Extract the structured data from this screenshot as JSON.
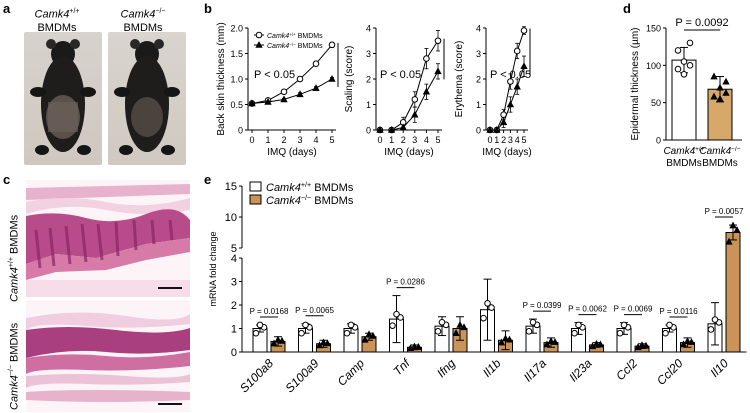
{
  "panels": {
    "a": {
      "label": "a",
      "mice": [
        {
          "genotype": "Camk4",
          "sup": "+/+",
          "suffix": "BMDMs"
        },
        {
          "genotype": "Camk4",
          "sup": "−/−",
          "suffix": "BMDMs"
        }
      ]
    },
    "c": {
      "label": "c",
      "rows": [
        {
          "genotype": "Camk4",
          "sup": "+/+",
          "suffix": " BMDMs"
        },
        {
          "genotype": "Camk4",
          "sup": "−/−",
          "suffix": " BMDMs"
        }
      ]
    }
  },
  "chart_data": [
    {
      "id": "b1",
      "panel_label": "b",
      "type": "line",
      "xlabel": "IMQ (days)",
      "ylabel": "Back skin thickness (mm)",
      "x": [
        0,
        1,
        2,
        3,
        4,
        5
      ],
      "ylim": [
        0,
        2.0
      ],
      "yticks": [
        "0",
        "0.5",
        "1.0",
        "1.5",
        "2.0"
      ],
      "annotation": "P < 0.05",
      "legend": [
        {
          "genotype": "Camk4",
          "sup": "+/+",
          "suffix": " BMDMs"
        },
        {
          "genotype": "Camk4",
          "sup": "−/−",
          "suffix": " BMDMs"
        }
      ],
      "series": [
        {
          "name": "Camk4+/+ BMDMs",
          "values": [
            0.52,
            0.58,
            0.75,
            1.0,
            1.3,
            1.67
          ],
          "err": [
            0.02,
            0.02,
            0.03,
            0.03,
            0.04,
            0.05
          ]
        },
        {
          "name": "Camk4−/− BMDMs",
          "values": [
            0.52,
            0.55,
            0.6,
            0.7,
            0.82,
            1.0
          ],
          "err": [
            0.02,
            0.02,
            0.02,
            0.03,
            0.03,
            0.03
          ]
        }
      ]
    },
    {
      "id": "b2",
      "type": "line",
      "xlabel": "IMQ (days)",
      "ylabel": "Scaling (score)",
      "x": [
        0,
        1,
        2,
        3,
        4,
        5
      ],
      "ylim": [
        0,
        4
      ],
      "yticks": [
        "0",
        "1",
        "2",
        "3",
        "4"
      ],
      "annotation": "P < 0.05",
      "series": [
        {
          "name": "Camk4+/+ BMDMs",
          "values": [
            0,
            0,
            0.3,
            1.2,
            2.8,
            3.5
          ],
          "err": [
            0,
            0,
            0.2,
            0.3,
            0.4,
            0.4
          ]
        },
        {
          "name": "Camk4−/− BMDMs",
          "values": [
            0,
            0,
            0.1,
            0.6,
            1.5,
            2.3
          ],
          "err": [
            0,
            0,
            0.1,
            0.3,
            0.3,
            0.3
          ]
        }
      ]
    },
    {
      "id": "b3",
      "type": "line",
      "xlabel": "IMQ (days)",
      "ylabel": "Erythema (score)",
      "x": [
        0,
        1,
        2,
        3,
        4,
        5
      ],
      "ylim": [
        0,
        4
      ],
      "yticks": [
        "0",
        "1",
        "2",
        "3",
        "4"
      ],
      "annotation": "P < 0.05",
      "series": [
        {
          "name": "Camk4+/+ BMDMs",
          "values": [
            0,
            0,
            0.6,
            1.9,
            3.1,
            3.9
          ],
          "err": [
            0,
            0,
            0.2,
            0.3,
            0.3,
            0.15
          ]
        },
        {
          "name": "Camk4−/− BMDMs",
          "values": [
            0,
            0,
            0.3,
            1.0,
            1.7,
            2.5
          ],
          "err": [
            0,
            0,
            0.2,
            0.3,
            0.3,
            0.4
          ]
        }
      ]
    },
    {
      "id": "d",
      "panel_label": "d",
      "type": "bar",
      "ylabel": "Epidermal thickness (µm)",
      "ylim": [
        0,
        150
      ],
      "yticks": [
        "0",
        "50",
        "100",
        "150"
      ],
      "annotation": "P = 0.0092",
      "categories": [
        {
          "genotype": "Camk4",
          "sup": "+/+",
          "suffix": "BMDMs"
        },
        {
          "genotype": "Camk4",
          "sup": "−/−",
          "suffix": "BMDMs"
        }
      ],
      "values": [
        107,
        68
      ],
      "err": [
        17,
        17
      ],
      "points": [
        [
          120,
          105,
          100,
          95,
          88,
          130
        ],
        [
          85,
          70,
          63,
          58,
          55,
          78
        ]
      ],
      "colors": [
        "#ffffff",
        "#d6a86a"
      ]
    },
    {
      "id": "e",
      "panel_label": "e",
      "type": "bar",
      "ylabel": "mRNA fold change",
      "axis_break": {
        "lower_max": 4,
        "upper_range": [
          5,
          15
        ]
      },
      "yticks_lower": [
        "0",
        "1",
        "2",
        "3",
        "4"
      ],
      "yticks_upper": [
        "5",
        "10",
        "15"
      ],
      "legend": [
        {
          "genotype": "Camk4",
          "sup": "+/+",
          "suffix": " BMDMs"
        },
        {
          "genotype": "Camk4",
          "sup": "−/−",
          "suffix": " BMDMs"
        }
      ],
      "categories": [
        "S100a8",
        "S100a9",
        "Camp",
        "Tnf",
        "Ifng",
        "Il1b",
        "Il17a",
        "Il23a",
        "Ccl2",
        "Ccl20",
        "Il10"
      ],
      "pvalues": [
        "P = 0.0168",
        "P = 0.0065",
        "",
        "P = 0.0286",
        "",
        "",
        "P = 0.0399",
        "P = 0.0062",
        "P = 0.0069",
        "P = 0.0116",
        "P = 0.0057"
      ],
      "series": [
        {
          "name": "Camk4+/+ BMDMs",
          "values": [
            1.0,
            1.0,
            1.0,
            1.4,
            1.1,
            1.8,
            1.1,
            1.0,
            1.0,
            1.0,
            1.2
          ],
          "err": [
            0.15,
            0.2,
            0.2,
            1.0,
            0.4,
            1.3,
            0.3,
            0.25,
            0.25,
            0.15,
            0.9
          ]
        },
        {
          "name": "Camk4−/− BMDMs",
          "values": [
            0.45,
            0.35,
            0.65,
            0.2,
            1.0,
            0.5,
            0.4,
            0.3,
            0.25,
            0.4,
            7.5
          ],
          "err": [
            0.2,
            0.15,
            0.15,
            0.1,
            0.5,
            0.4,
            0.2,
            0.1,
            0.1,
            0.2,
            1.2
          ]
        }
      ]
    }
  ]
}
